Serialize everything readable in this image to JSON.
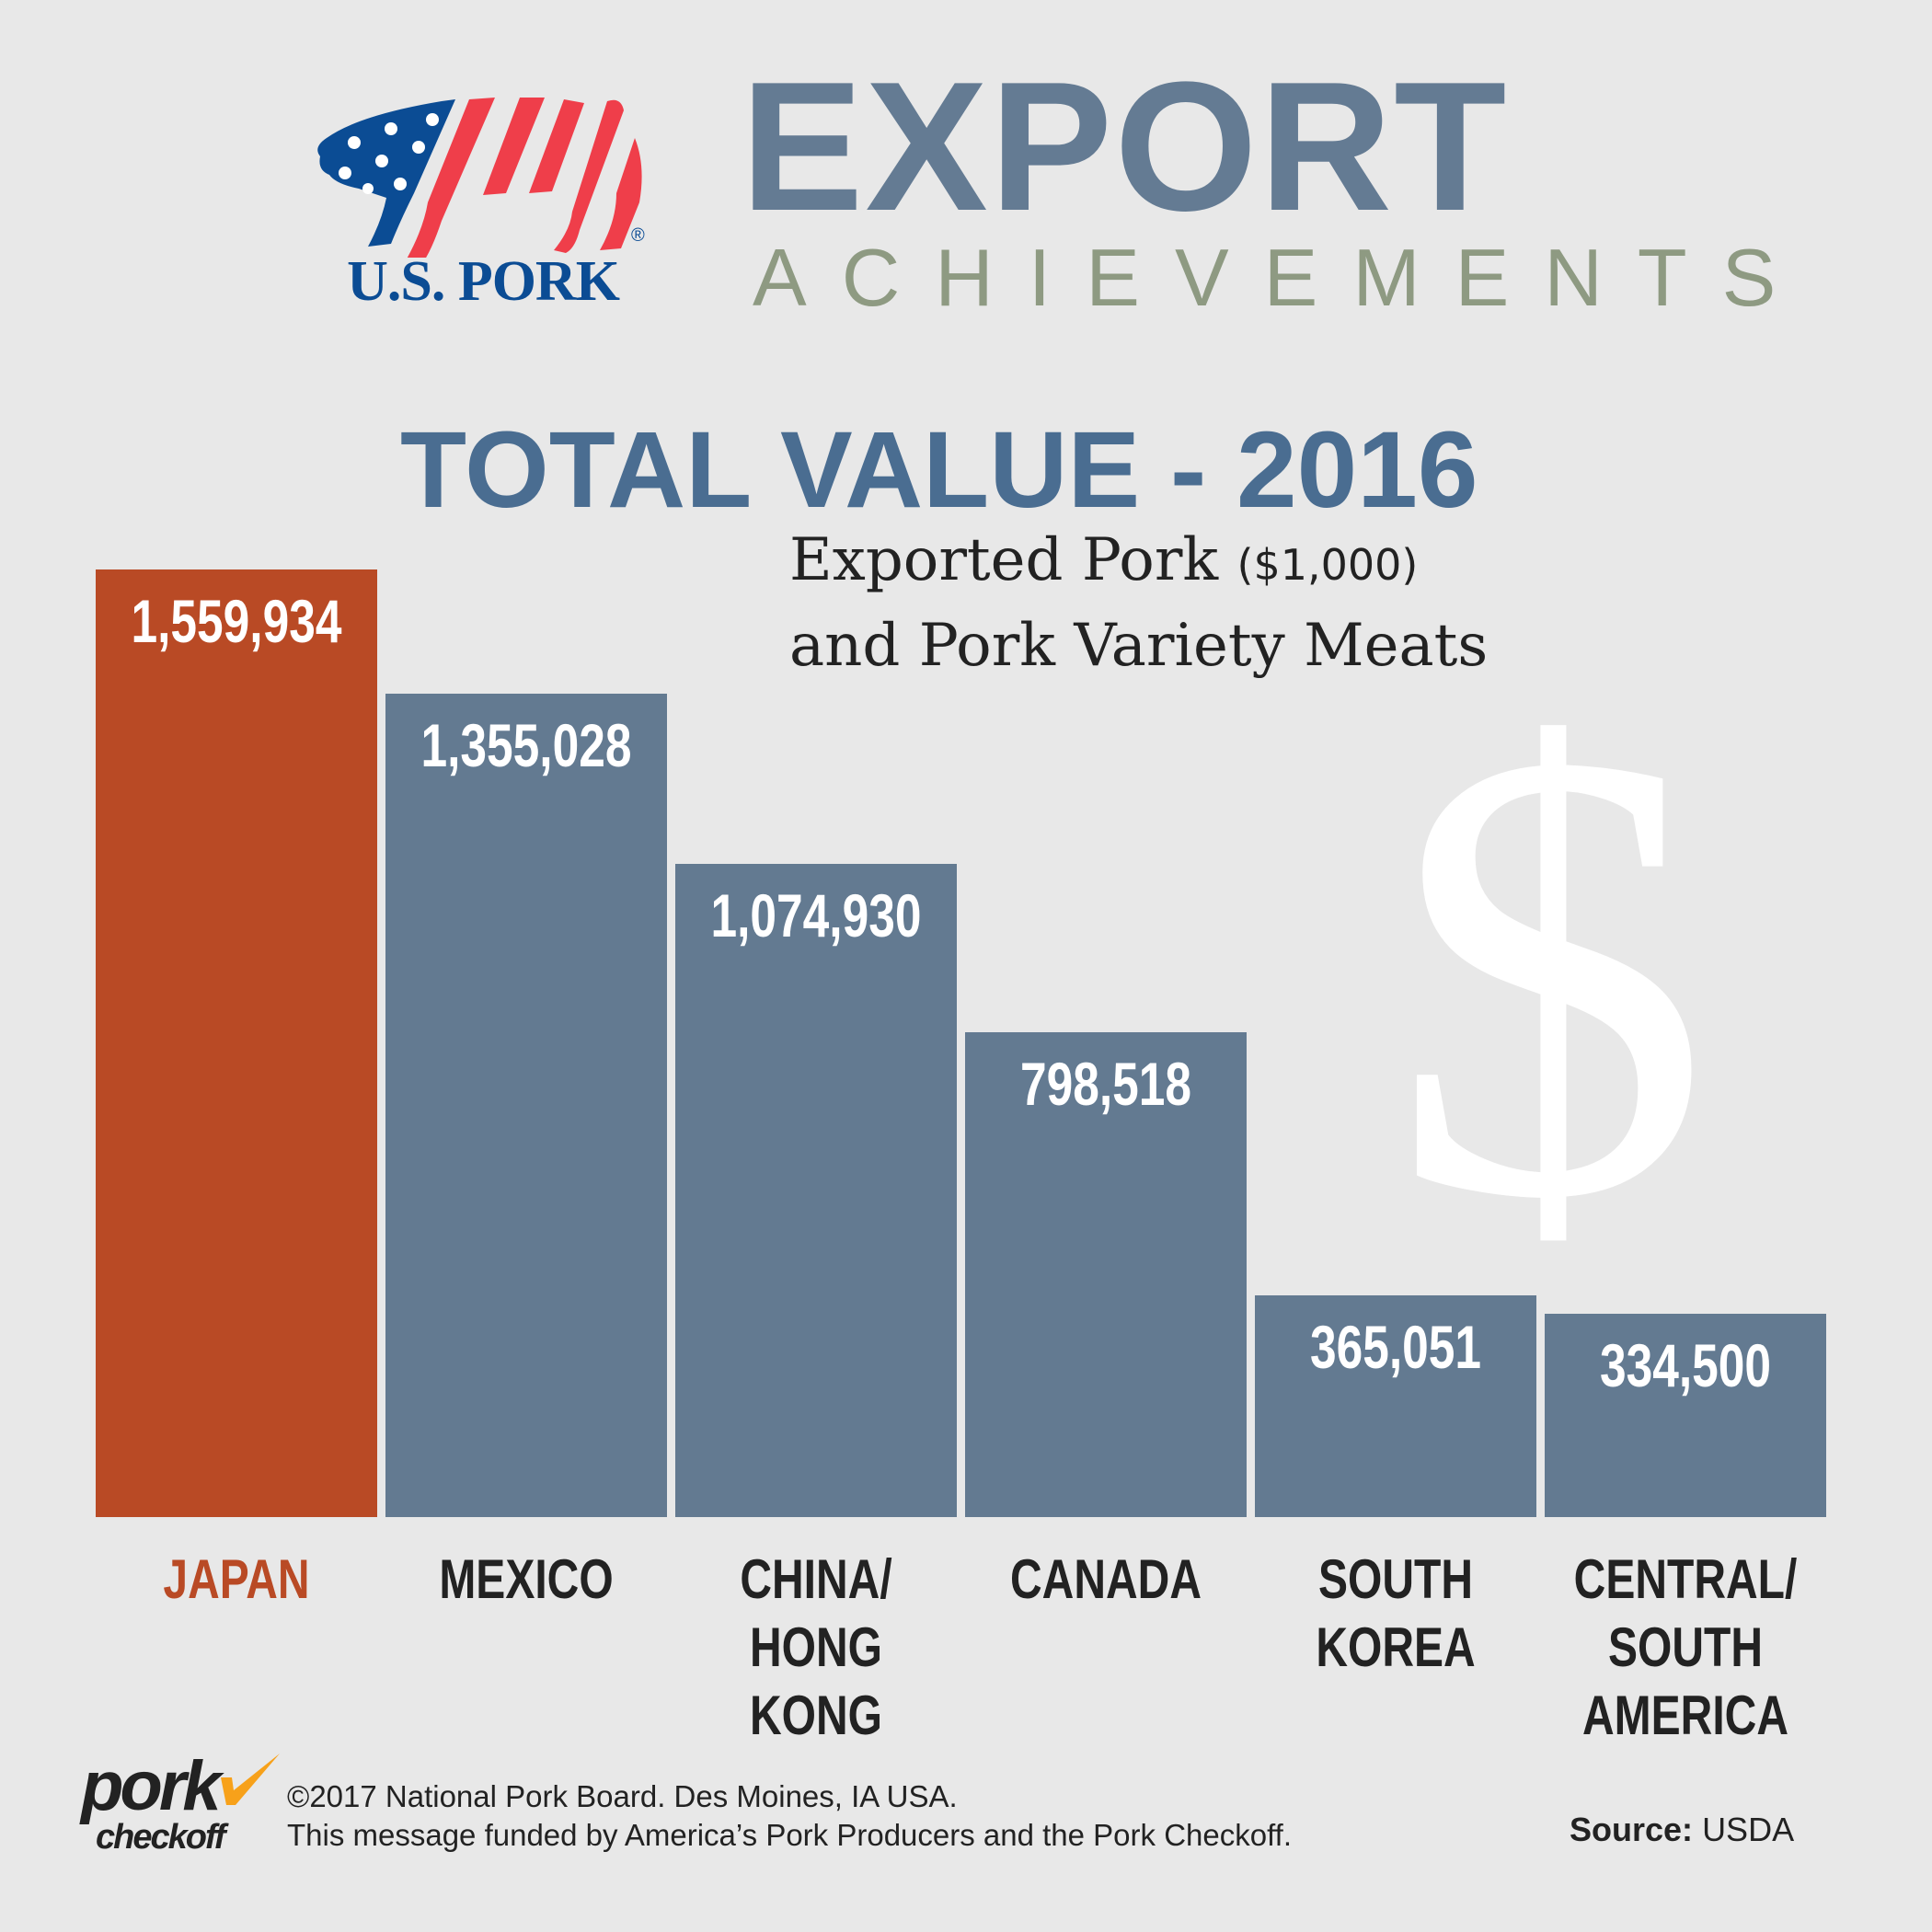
{
  "logo": {
    "text": "U.S. PORK",
    "registered": "®"
  },
  "header": {
    "title": "EXPORT",
    "subtitle": "ACHIEVEMENTS"
  },
  "chart_data": {
    "type": "bar",
    "title": "TOTAL VALUE - 2016",
    "subtitle_line1": "Exported Pork",
    "subtitle_unit": "($1,000)",
    "subtitle_line2": "and Pork Variety Meats",
    "categories": [
      "JAPAN",
      "MEXICO",
      "CHINA/\nHONG KONG",
      "CANADA",
      "SOUTH\nKOREA",
      "CENTRAL/\nSOUTH\nAMERICA"
    ],
    "values": [
      1559934,
      1355028,
      1074930,
      798518,
      365051,
      334500
    ],
    "value_labels": [
      "1,559,934",
      "1,355,028",
      "1,074,930",
      "798,518",
      "365,051",
      "334,500"
    ],
    "colors": [
      "#b94a25",
      "#637a91",
      "#637a91",
      "#637a91",
      "#637a91",
      "#637a91"
    ],
    "label_colors": [
      "#b94a25",
      "#222222",
      "#222222",
      "#222222",
      "#222222",
      "#222222"
    ],
    "ylim": [
      0,
      1559934
    ],
    "xlabel": "",
    "ylabel": ""
  },
  "decor": {
    "dollar": "$"
  },
  "footer": {
    "logo_pork": "pork",
    "logo_checkoff": "checkoff",
    "line1": "©2017 National Pork Board. Des Moines, IA  USA.",
    "line2": "This message funded by America’s Pork Producers and the Pork Checkoff.",
    "source_label": "Source:",
    "source_value": "USDA"
  }
}
